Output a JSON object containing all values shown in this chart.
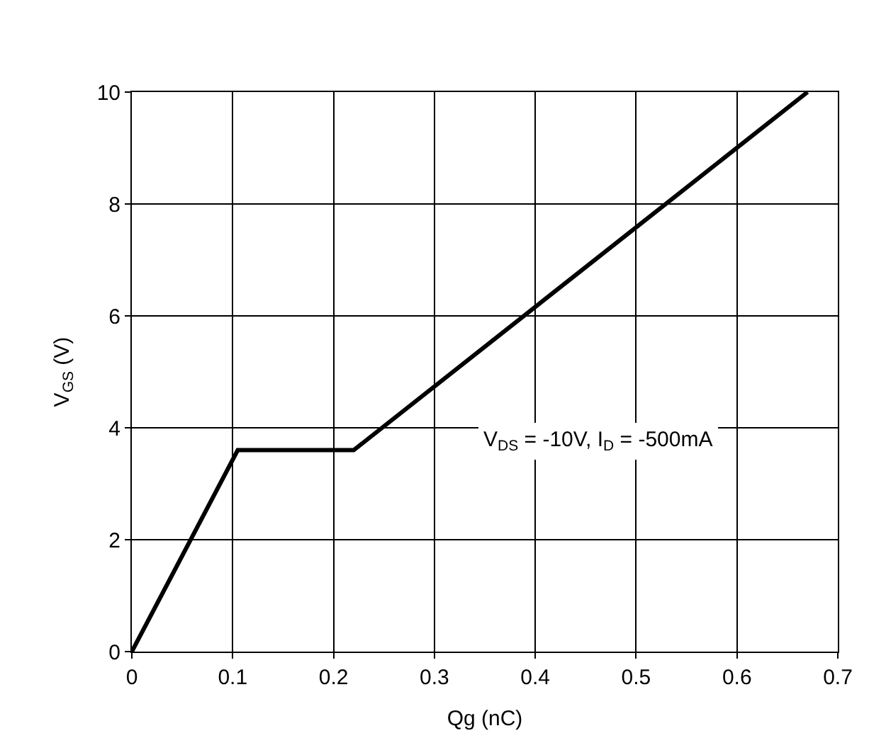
{
  "chart_data": {
    "type": "line",
    "xlabel": "Qg (nC)",
    "ylabel": "V$_{GS}$ (V)",
    "x": [
      0,
      0.105,
      0.22,
      0.67
    ],
    "series": [
      {
        "color": "#000000",
        "values": [
          0,
          3.6,
          3.6,
          10
        ]
      }
    ],
    "xlim": [
      0,
      0.7
    ],
    "xticks": [
      0,
      0.1,
      0.2,
      0.3,
      0.4,
      0.5,
      0.6,
      0.7
    ],
    "ylim": [
      0,
      10
    ],
    "yticks": [
      0,
      2,
      4,
      6,
      8,
      10
    ],
    "grid": true,
    "marker": "none",
    "line_style": "solid",
    "annotations": [
      "V$_{DS}$ = -10V, I$_{D}$ = -500mA"
    ]
  }
}
